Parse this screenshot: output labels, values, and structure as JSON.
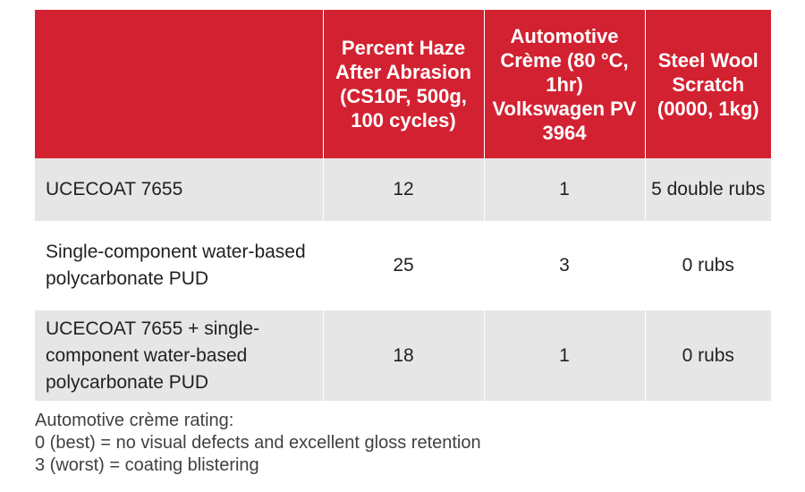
{
  "colors": {
    "header_bg": "#d22232",
    "header_text": "#ffffff",
    "row_shade": "#e6e6e6",
    "body_text": "#231f20",
    "note_text": "#414042"
  },
  "table": {
    "headers": [
      "",
      "Percent Haze After Abrasion (CS10F, 500g, 100 cycles)",
      "Automotive Crème (80 °C, 1hr) Volkswagen PV 3964",
      "Steel Wool Scratch (0000, 1kg)"
    ],
    "rows": [
      {
        "name": "UCECOAT 7655",
        "haze": "12",
        "creme": "1",
        "scratch": "5 double rubs"
      },
      {
        "name": "Single-component water-based polycarbonate PUD",
        "haze": "25",
        "creme": "3",
        "scratch": "0 rubs"
      },
      {
        "name": "UCECOAT 7655 + single-component water-based polycarbonate PUD",
        "haze": "18",
        "creme": "1",
        "scratch": "0 rubs"
      }
    ]
  },
  "footnote": {
    "line1": "Automotive crème rating:",
    "line2": "0 (best) = no visual defects and excellent gloss retention",
    "line3": "3 (worst) = coating blistering"
  }
}
